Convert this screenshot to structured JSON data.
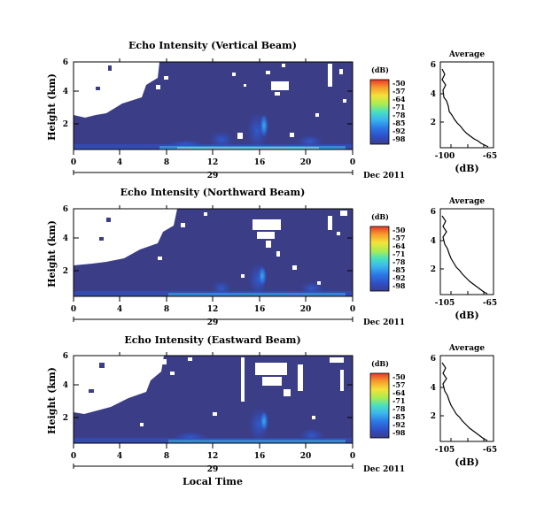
{
  "chart_data": [
    {
      "type": "heatmap",
      "title": "Echo Intensity (Vertical Beam)",
      "ylabel": "Height (km)",
      "y_ticks": [
        "2",
        "4",
        "6"
      ],
      "x_ticks": [
        "0",
        "4",
        "8",
        "12",
        "16",
        "20",
        "0"
      ],
      "day_label": "29",
      "month_label": "Dec 2011",
      "xlabel": "",
      "x_range_hours": [
        0,
        24
      ],
      "y_range_km": [
        0,
        6
      ],
      "colorbar": {
        "title": "(dB)",
        "ticks": [
          "-50",
          "-57",
          "-64",
          "-71",
          "-78",
          "-85",
          "-92",
          "-98"
        ]
      },
      "average_panel": {
        "title": "Average",
        "xlabel": "(dB)",
        "x_ticks": [
          "-100",
          "-65"
        ],
        "y_ticks": [
          "2",
          "4",
          "6"
        ],
        "xlim": [
          -100,
          -65
        ]
      }
    },
    {
      "type": "heatmap",
      "title": "Echo Intensity (Northward Beam)",
      "ylabel": "Height (km)",
      "y_ticks": [
        "2",
        "4",
        "6"
      ],
      "x_ticks": [
        "0",
        "4",
        "8",
        "12",
        "16",
        "20",
        "0"
      ],
      "day_label": "29",
      "month_label": "Dec 2011",
      "xlabel": "",
      "x_range_hours": [
        0,
        24
      ],
      "y_range_km": [
        0,
        6
      ],
      "colorbar": {
        "title": "(dB)",
        "ticks": [
          "-50",
          "-57",
          "-64",
          "-71",
          "-78",
          "-85",
          "-92",
          "-98"
        ]
      },
      "average_panel": {
        "title": "Average",
        "xlabel": "(dB)",
        "x_ticks": [
          "-105",
          "-65"
        ],
        "y_ticks": [
          "2",
          "4",
          "6"
        ],
        "xlim": [
          -105,
          -65
        ]
      }
    },
    {
      "type": "heatmap",
      "title": "Echo Intensity (Eastward Beam)",
      "ylabel": "Height (km)",
      "y_ticks": [
        "2",
        "4",
        "6"
      ],
      "x_ticks": [
        "0",
        "4",
        "8",
        "12",
        "16",
        "20",
        "0"
      ],
      "day_label": "29",
      "month_label": "Dec 2011",
      "xlabel": "Local Time",
      "x_range_hours": [
        0,
        24
      ],
      "y_range_km": [
        0,
        6
      ],
      "colorbar": {
        "title": "(dB)",
        "ticks": [
          "-50",
          "-57",
          "-64",
          "-71",
          "-78",
          "-85",
          "-92",
          "-98"
        ]
      },
      "average_panel": {
        "title": "Average",
        "xlabel": "(dB)",
        "x_ticks": [
          "-105",
          "-65"
        ],
        "y_ticks": [
          "2",
          "4",
          "6"
        ],
        "xlim": [
          -105,
          -65
        ]
      }
    }
  ],
  "colors": {
    "background_echo": "#3b3d86",
    "colormap": [
      "#3a3d8c",
      "#2f4fc7",
      "#2b77e6",
      "#3ab6ee",
      "#48e0c0",
      "#a8ec52",
      "#f4e23a",
      "#f79a2c",
      "#e8382a"
    ]
  }
}
